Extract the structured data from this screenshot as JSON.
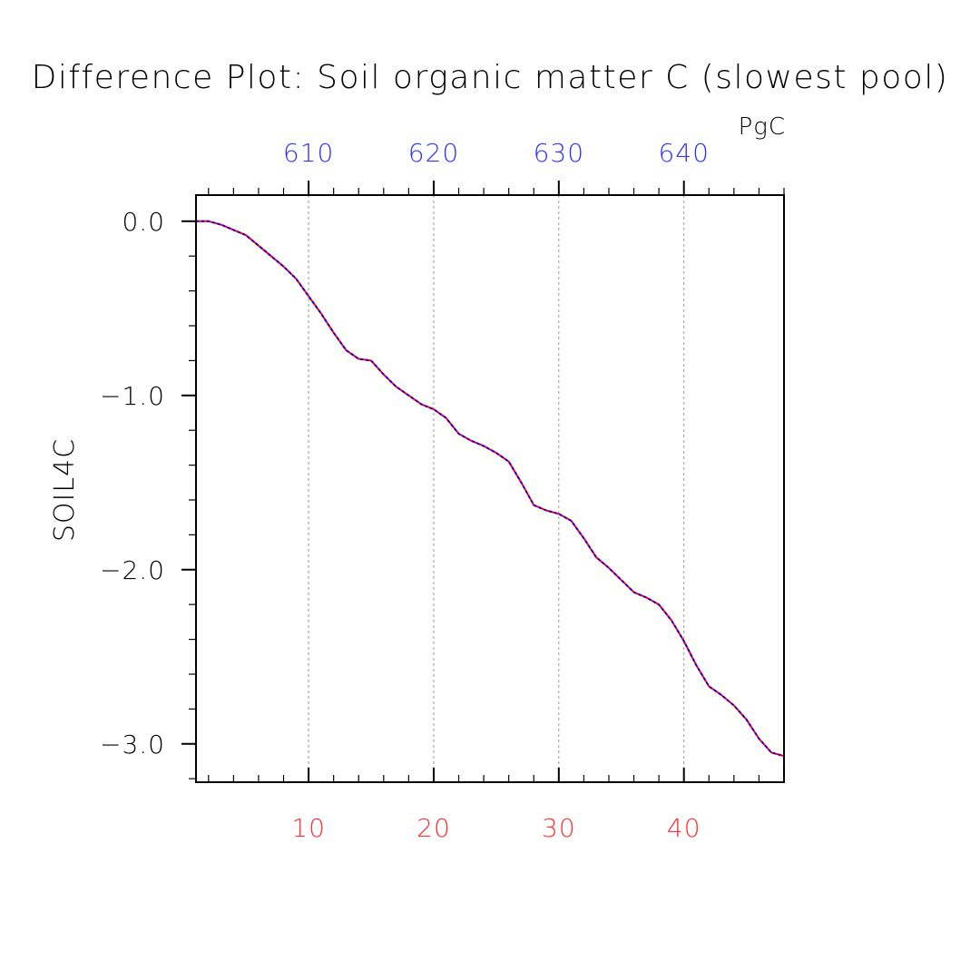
{
  "chart_data": {
    "type": "line",
    "title": "Difference Plot: Soil organic matter C (slowest pool)",
    "units": "PgC",
    "ylabel": "SOIL4C",
    "xlim": [
      1,
      48
    ],
    "ylim": [
      -3.22,
      0.15
    ],
    "bottom_axis": {
      "ticks": [
        10,
        20,
        30,
        40
      ],
      "tick_labels": [
        "10",
        "20",
        "30",
        "40"
      ],
      "color": "#ff3333"
    },
    "top_axis": {
      "tick_labels": [
        "610",
        "620",
        "630",
        "640"
      ],
      "color": "#3333ff"
    },
    "y_axis": {
      "ticks": [
        0.0,
        -1.0,
        -2.0,
        -3.0
      ],
      "tick_labels": [
        "0.0",
        "−1.0",
        "−2.0",
        "−3.0"
      ]
    },
    "grid": "vertical dashed at major x ticks",
    "series": [
      {
        "color": "#ff0000",
        "style": "solid",
        "x": [
          1,
          2,
          3,
          4,
          5,
          6,
          7,
          8,
          9,
          10,
          11,
          12,
          13,
          14,
          15,
          16,
          17,
          18,
          19,
          20,
          21,
          22,
          23,
          24,
          25,
          26,
          27,
          28,
          29,
          30,
          31,
          32,
          33,
          34,
          35,
          36,
          37,
          38,
          39,
          40,
          41,
          42,
          43,
          44,
          45,
          46,
          47,
          48
        ],
        "values": [
          0.0,
          0.0,
          -0.02,
          -0.05,
          -0.08,
          -0.14,
          -0.2,
          -0.26,
          -0.33,
          -0.43,
          -0.53,
          -0.64,
          -0.74,
          -0.79,
          -0.8,
          -0.88,
          -0.95,
          -1.0,
          -1.05,
          -1.08,
          -1.13,
          -1.22,
          -1.26,
          -1.29,
          -1.33,
          -1.38,
          -1.5,
          -1.63,
          -1.66,
          -1.68,
          -1.72,
          -1.82,
          -1.93,
          -1.99,
          -2.06,
          -2.13,
          -2.16,
          -2.2,
          -2.29,
          -2.41,
          -2.55,
          -2.67,
          -2.72,
          -2.78,
          -2.86,
          -2.97,
          -3.05,
          -3.07
        ]
      },
      {
        "color": "#0000ff",
        "style": "dashed",
        "x": [
          1,
          2,
          3,
          4,
          5,
          6,
          7,
          8,
          9,
          10,
          11,
          12,
          13,
          14,
          15,
          16,
          17,
          18,
          19,
          20,
          21,
          22,
          23,
          24,
          25,
          26,
          27,
          28,
          29,
          30,
          31,
          32,
          33,
          34,
          35,
          36,
          37,
          38,
          39,
          40,
          41,
          42,
          43,
          44,
          45,
          46,
          47,
          48
        ],
        "values": [
          0.0,
          0.0,
          -0.02,
          -0.05,
          -0.08,
          -0.14,
          -0.2,
          -0.26,
          -0.33,
          -0.43,
          -0.53,
          -0.64,
          -0.74,
          -0.79,
          -0.8,
          -0.88,
          -0.95,
          -1.0,
          -1.05,
          -1.08,
          -1.13,
          -1.22,
          -1.26,
          -1.29,
          -1.33,
          -1.38,
          -1.5,
          -1.63,
          -1.66,
          -1.68,
          -1.72,
          -1.82,
          -1.93,
          -1.99,
          -2.06,
          -2.13,
          -2.16,
          -2.2,
          -2.29,
          -2.41,
          -2.55,
          -2.67,
          -2.72,
          -2.78,
          -2.86,
          -2.97,
          -3.05,
          -3.07
        ]
      }
    ]
  }
}
